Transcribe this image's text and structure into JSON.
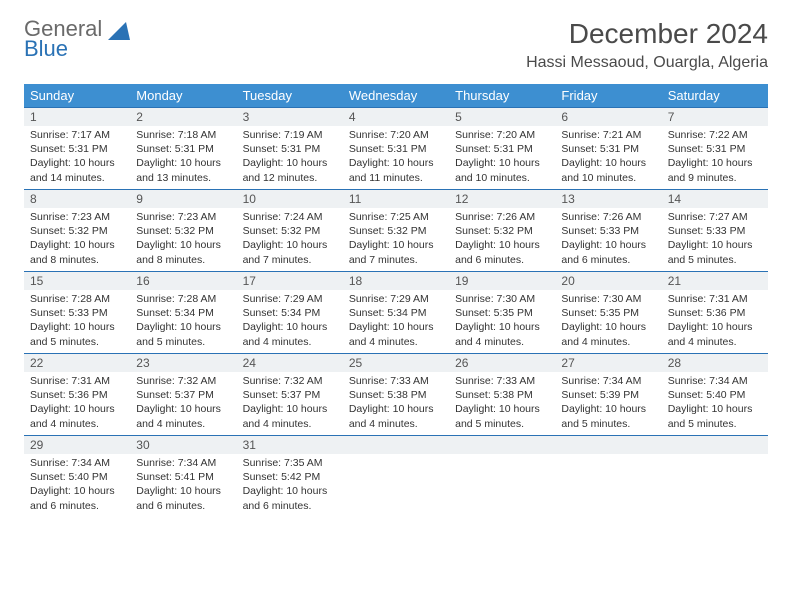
{
  "logo": {
    "line1": "General",
    "line2": "Blue"
  },
  "title": "December 2024",
  "location": "Hassi Messaoud, Ouargla, Algeria",
  "colors": {
    "header_bg": "#3d8fd1",
    "header_text": "#ffffff",
    "daynum_bg": "#eef1f3",
    "border": "#2a72b5",
    "text": "#333333",
    "logo_grey": "#6a6a6a",
    "logo_blue": "#2a72b5"
  },
  "day_headers": [
    "Sunday",
    "Monday",
    "Tuesday",
    "Wednesday",
    "Thursday",
    "Friday",
    "Saturday"
  ],
  "weeks": [
    [
      {
        "n": "1",
        "sunrise": "7:17 AM",
        "sunset": "5:31 PM",
        "daylight": "10 hours and 14 minutes."
      },
      {
        "n": "2",
        "sunrise": "7:18 AM",
        "sunset": "5:31 PM",
        "daylight": "10 hours and 13 minutes."
      },
      {
        "n": "3",
        "sunrise": "7:19 AM",
        "sunset": "5:31 PM",
        "daylight": "10 hours and 12 minutes."
      },
      {
        "n": "4",
        "sunrise": "7:20 AM",
        "sunset": "5:31 PM",
        "daylight": "10 hours and 11 minutes."
      },
      {
        "n": "5",
        "sunrise": "7:20 AM",
        "sunset": "5:31 PM",
        "daylight": "10 hours and 10 minutes."
      },
      {
        "n": "6",
        "sunrise": "7:21 AM",
        "sunset": "5:31 PM",
        "daylight": "10 hours and 10 minutes."
      },
      {
        "n": "7",
        "sunrise": "7:22 AM",
        "sunset": "5:31 PM",
        "daylight": "10 hours and 9 minutes."
      }
    ],
    [
      {
        "n": "8",
        "sunrise": "7:23 AM",
        "sunset": "5:32 PM",
        "daylight": "10 hours and 8 minutes."
      },
      {
        "n": "9",
        "sunrise": "7:23 AM",
        "sunset": "5:32 PM",
        "daylight": "10 hours and 8 minutes."
      },
      {
        "n": "10",
        "sunrise": "7:24 AM",
        "sunset": "5:32 PM",
        "daylight": "10 hours and 7 minutes."
      },
      {
        "n": "11",
        "sunrise": "7:25 AM",
        "sunset": "5:32 PM",
        "daylight": "10 hours and 7 minutes."
      },
      {
        "n": "12",
        "sunrise": "7:26 AM",
        "sunset": "5:32 PM",
        "daylight": "10 hours and 6 minutes."
      },
      {
        "n": "13",
        "sunrise": "7:26 AM",
        "sunset": "5:33 PM",
        "daylight": "10 hours and 6 minutes."
      },
      {
        "n": "14",
        "sunrise": "7:27 AM",
        "sunset": "5:33 PM",
        "daylight": "10 hours and 5 minutes."
      }
    ],
    [
      {
        "n": "15",
        "sunrise": "7:28 AM",
        "sunset": "5:33 PM",
        "daylight": "10 hours and 5 minutes."
      },
      {
        "n": "16",
        "sunrise": "7:28 AM",
        "sunset": "5:34 PM",
        "daylight": "10 hours and 5 minutes."
      },
      {
        "n": "17",
        "sunrise": "7:29 AM",
        "sunset": "5:34 PM",
        "daylight": "10 hours and 4 minutes."
      },
      {
        "n": "18",
        "sunrise": "7:29 AM",
        "sunset": "5:34 PM",
        "daylight": "10 hours and 4 minutes."
      },
      {
        "n": "19",
        "sunrise": "7:30 AM",
        "sunset": "5:35 PM",
        "daylight": "10 hours and 4 minutes."
      },
      {
        "n": "20",
        "sunrise": "7:30 AM",
        "sunset": "5:35 PM",
        "daylight": "10 hours and 4 minutes."
      },
      {
        "n": "21",
        "sunrise": "7:31 AM",
        "sunset": "5:36 PM",
        "daylight": "10 hours and 4 minutes."
      }
    ],
    [
      {
        "n": "22",
        "sunrise": "7:31 AM",
        "sunset": "5:36 PM",
        "daylight": "10 hours and 4 minutes."
      },
      {
        "n": "23",
        "sunrise": "7:32 AM",
        "sunset": "5:37 PM",
        "daylight": "10 hours and 4 minutes."
      },
      {
        "n": "24",
        "sunrise": "7:32 AM",
        "sunset": "5:37 PM",
        "daylight": "10 hours and 4 minutes."
      },
      {
        "n": "25",
        "sunrise": "7:33 AM",
        "sunset": "5:38 PM",
        "daylight": "10 hours and 4 minutes."
      },
      {
        "n": "26",
        "sunrise": "7:33 AM",
        "sunset": "5:38 PM",
        "daylight": "10 hours and 5 minutes."
      },
      {
        "n": "27",
        "sunrise": "7:34 AM",
        "sunset": "5:39 PM",
        "daylight": "10 hours and 5 minutes."
      },
      {
        "n": "28",
        "sunrise": "7:34 AM",
        "sunset": "5:40 PM",
        "daylight": "10 hours and 5 minutes."
      }
    ],
    [
      {
        "n": "29",
        "sunrise": "7:34 AM",
        "sunset": "5:40 PM",
        "daylight": "10 hours and 6 minutes."
      },
      {
        "n": "30",
        "sunrise": "7:34 AM",
        "sunset": "5:41 PM",
        "daylight": "10 hours and 6 minutes."
      },
      {
        "n": "31",
        "sunrise": "7:35 AM",
        "sunset": "5:42 PM",
        "daylight": "10 hours and 6 minutes."
      },
      null,
      null,
      null,
      null
    ]
  ],
  "labels": {
    "sunrise": "Sunrise: ",
    "sunset": "Sunset: ",
    "daylight": "Daylight: "
  }
}
